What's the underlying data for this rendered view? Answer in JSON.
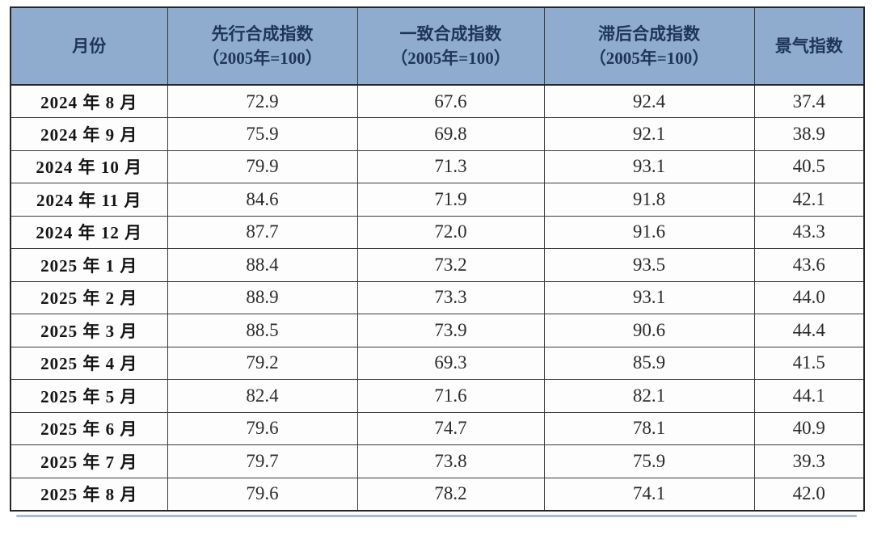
{
  "chart_data": {
    "type": "table",
    "title": "",
    "header": {
      "month": "月份",
      "leading": {
        "line1": "先行合成指数",
        "line2": "（2005年=100）"
      },
      "coincident": {
        "line1": "一致合成指数",
        "line2": "（2005年=100）"
      },
      "lagging": {
        "line1": "滞后合成指数",
        "line2": "（2005年=100）"
      },
      "prosperity": "景气指数"
    },
    "columns_flat": [
      "月份",
      "先行合成指数（2005年=100）",
      "一致合成指数（2005年=100）",
      "滞后合成指数（2005年=100）",
      "景气指数"
    ],
    "rows": [
      {
        "month": "2024 年 8 月",
        "values": [
          "72.9",
          "67.6",
          "92.4",
          "37.4"
        ]
      },
      {
        "month": "2024 年 9 月",
        "values": [
          "75.9",
          "69.8",
          "92.1",
          "38.9"
        ]
      },
      {
        "month": "2024 年 10 月",
        "values": [
          "79.9",
          "71.3",
          "93.1",
          "40.5"
        ]
      },
      {
        "month": "2024 年 11 月",
        "values": [
          "84.6",
          "71.9",
          "91.8",
          "42.1"
        ]
      },
      {
        "month": "2024 年 12 月",
        "values": [
          "87.7",
          "72.0",
          "91.6",
          "43.3"
        ]
      },
      {
        "month": "2025 年 1 月",
        "values": [
          "88.4",
          "73.2",
          "93.5",
          "43.6"
        ]
      },
      {
        "month": "2025 年 2 月",
        "values": [
          "88.9",
          "73.3",
          "93.1",
          "44.0"
        ]
      },
      {
        "month": "2025 年 3 月",
        "values": [
          "88.5",
          "73.9",
          "90.6",
          "44.4"
        ]
      },
      {
        "month": "2025 年 4 月",
        "values": [
          "79.2",
          "69.3",
          "85.9",
          "41.5"
        ]
      },
      {
        "month": "2025 年 5 月",
        "values": [
          "82.4",
          "71.6",
          "82.1",
          "44.1"
        ]
      },
      {
        "month": "2025 年 6 月",
        "values": [
          "79.6",
          "74.7",
          "78.1",
          "40.9"
        ]
      },
      {
        "month": "2025 年 7 月",
        "values": [
          "79.7",
          "73.8",
          "75.9",
          "39.3"
        ]
      },
      {
        "month": "2025 年 8 月",
        "values": [
          "79.6",
          "78.2",
          "74.1",
          "42.0"
        ]
      }
    ]
  },
  "colors": {
    "header_bg": "#8FACCE",
    "header_text": "#1E3458",
    "outer_border": "#262626",
    "inner_border": "#3A3A3A",
    "cell_text": "#2B2B2B",
    "month_text": "#141414",
    "bottom_line": "#A9BCCF",
    "page_bg": "#FFFFFF"
  }
}
